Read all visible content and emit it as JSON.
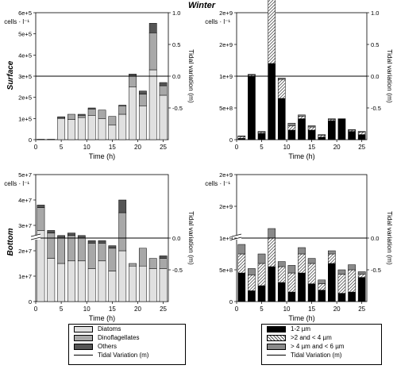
{
  "header": {
    "title": "Winter",
    "row_surface": "Surface",
    "row_bottom": "Bottom"
  },
  "axes": {
    "xlabel": "Time (h)",
    "ylabel_left": "cells · l⁻¹",
    "ylabel_right": "Tidal variation (m)"
  },
  "colors": {
    "diatoms": "#e0e0e0",
    "dinoflagellates": "#a8a8a8",
    "others": "#555555",
    "s1_2": "#000000",
    "s2_4": "#ffffff",
    "s4_6": "#8a8a8a"
  },
  "legend_left": {
    "items": [
      {
        "label": "Diatoms",
        "swatch": "diatoms"
      },
      {
        "label": "Dinoflagellates",
        "swatch": "dinoflagellates"
      },
      {
        "label": "Others",
        "swatch": "others"
      },
      {
        "label": "Tidal Variation (m)",
        "swatch": "line"
      }
    ]
  },
  "legend_right": {
    "items": [
      {
        "label": "1-2 µm",
        "swatch": "s1_2"
      },
      {
        "label": ">2 and < 4 µm",
        "swatch": "s2_4"
      },
      {
        "label": "> 4 µm and < 6 µm",
        "swatch": "s4_6"
      },
      {
        "label": "Tidal Variation (m)",
        "swatch": "line"
      }
    ]
  },
  "chart_data": [
    {
      "type": "bar",
      "stacked": true,
      "panel": "surface-phytoplankton",
      "x": [
        1,
        3,
        5,
        7,
        9,
        11,
        13,
        15,
        17,
        19,
        21,
        23,
        25
      ],
      "xlim": [
        0,
        26
      ],
      "xticks": [
        0,
        5,
        10,
        15,
        20,
        25
      ],
      "ylim": [
        0,
        600000
      ],
      "yticks": [
        {
          "v": 0,
          "t": "0"
        },
        {
          "v": 100000,
          "t": "1e+5"
        },
        {
          "v": 200000,
          "t": "2e+5"
        },
        {
          "v": 300000,
          "t": "3e+5"
        },
        {
          "v": 400000,
          "t": "4e+5"
        },
        {
          "v": 500000,
          "t": "5e+5"
        },
        {
          "v": 600000,
          "t": "6e+5"
        }
      ],
      "y2lim": [
        -1,
        1
      ],
      "y2ticks": [
        {
          "v": 1,
          "t": "1.0"
        },
        {
          "v": 0.5,
          "t": "0.5"
        },
        {
          "v": 0,
          "t": "0.0"
        },
        {
          "v": -0.5,
          "t": "-0.5"
        }
      ],
      "tide": [
        0,
        0,
        0,
        0,
        0,
        0,
        0,
        0,
        0,
        0,
        0,
        0,
        0
      ],
      "series": [
        {
          "name": "Diatoms",
          "color_key": "diatoms",
          "values": [
            2000,
            2000,
            100000,
            95000,
            105000,
            115000,
            100000,
            70000,
            120000,
            250000,
            160000,
            330000,
            210000
          ]
        },
        {
          "name": "Dinoflagellates",
          "color_key": "dinoflagellates",
          "values": [
            0,
            0,
            5000,
            25000,
            10000,
            30000,
            40000,
            40000,
            40000,
            50000,
            55000,
            175000,
            45000
          ]
        },
        {
          "name": "Others",
          "color_key": "others",
          "values": [
            0,
            0,
            3000,
            0,
            5000,
            5000,
            0,
            0,
            3000,
            10000,
            15000,
            45000,
            15000
          ]
        }
      ]
    },
    {
      "type": "bar",
      "stacked": true,
      "panel": "surface-picoplankton",
      "x": [
        1,
        3,
        5,
        7,
        9,
        11,
        13,
        15,
        17,
        19,
        21,
        23,
        25
      ],
      "xlim": [
        0,
        26
      ],
      "xticks": [
        0,
        5,
        10,
        15,
        20,
        25
      ],
      "ylim": [
        0,
        2000000000
      ],
      "yticks": [
        {
          "v": 0,
          "t": "0"
        },
        {
          "v": 500000000,
          "t": "5e+8"
        },
        {
          "v": 1000000000,
          "t": "1e+9"
        },
        {
          "v": 1500000000,
          "t": "2e+9"
        },
        {
          "v": 2000000000,
          "t": "2e+9"
        }
      ],
      "y2lim": [
        -1,
        1
      ],
      "y2ticks": [
        {
          "v": 1,
          "t": "1.0"
        },
        {
          "v": 0.5,
          "t": "0.5"
        },
        {
          "v": 0,
          "t": "0.0"
        },
        {
          "v": -0.5,
          "t": "-0.5"
        }
      ],
      "tide": [
        0,
        0,
        0,
        0,
        0,
        0,
        0,
        0,
        0,
        0,
        0,
        0,
        0
      ],
      "series": [
        {
          "name": "1-2 µm",
          "color_key": "s1_2",
          "values": [
            20000000,
            1000000000,
            100000000,
            1200000000,
            650000000,
            150000000,
            330000000,
            150000000,
            40000000,
            300000000,
            330000000,
            130000000,
            80000000
          ]
        },
        {
          "name": ">2 and < 4 µm",
          "color_key": "s2_4",
          "values": [
            30000000,
            20000000,
            20000000,
            1450000000,
            300000000,
            70000000,
            40000000,
            50000000,
            30000000,
            20000000,
            0,
            20000000,
            40000000
          ]
        },
        {
          "name": "> 4 µm and < 6 µm",
          "color_key": "s4_6",
          "values": [
            10000000,
            10000000,
            10000000,
            130000000,
            20000000,
            40000000,
            20000000,
            20000000,
            10000000,
            10000000,
            0,
            10000000,
            10000000
          ]
        }
      ]
    },
    {
      "type": "bar",
      "stacked": true,
      "panel": "bottom-phytoplankton",
      "broken_axis": true,
      "x": [
        1,
        3,
        5,
        7,
        9,
        11,
        13,
        15,
        17,
        19,
        21,
        23,
        25
      ],
      "xlim": [
        0,
        26
      ],
      "xticks": [
        0,
        5,
        10,
        15,
        20,
        25
      ],
      "ylim": [
        0,
        50000000
      ],
      "yticks": [
        {
          "v": 0,
          "t": "0"
        },
        {
          "v": 10000000,
          "t": "1e+7"
        },
        {
          "v": 20000000,
          "t": "2e+7"
        },
        {
          "v": 30000000,
          "t": "3e+7"
        },
        {
          "v": 40000000,
          "t": "4e+7"
        },
        {
          "v": 50000000,
          "t": "5e+7"
        }
      ],
      "y2lim": [
        -1,
        1
      ],
      "y2ticks": [
        {
          "v": 0,
          "t": "0.0"
        },
        {
          "v": -0.5,
          "t": "-0.5"
        }
      ],
      "tide": [
        0,
        0,
        0,
        0,
        0,
        0,
        0,
        0,
        0,
        0,
        0,
        0,
        0
      ],
      "series": [
        {
          "name": "Diatoms",
          "color_key": "diatoms",
          "values": [
            28000000,
            17000000,
            15000000,
            16000000,
            16000000,
            13000000,
            16000000,
            12000000,
            20000000,
            14000000,
            14000000,
            13000000,
            13000000
          ]
        },
        {
          "name": "Dinoflagellates",
          "color_key": "dinoflagellates",
          "values": [
            9000000,
            10000000,
            10000000,
            10000000,
            9000000,
            10000000,
            7000000,
            9000000,
            15000000,
            1000000,
            7000000,
            4000000,
            4000000
          ]
        },
        {
          "name": "Others",
          "color_key": "others",
          "values": [
            1000000,
            1000000,
            1000000,
            1000000,
            1000000,
            1000000,
            1000000,
            1000000,
            5000000,
            0,
            0,
            0,
            1000000
          ]
        }
      ]
    },
    {
      "type": "bar",
      "stacked": true,
      "panel": "bottom-picoplankton",
      "broken_axis": true,
      "x": [
        1,
        3,
        5,
        7,
        9,
        11,
        13,
        15,
        17,
        19,
        21,
        23,
        25
      ],
      "xlim": [
        0,
        26
      ],
      "xticks": [
        0,
        5,
        10,
        15,
        20,
        25
      ],
      "ylim": [
        0,
        2000000000
      ],
      "yticks": [
        {
          "v": 0,
          "t": "0"
        },
        {
          "v": 500000000,
          "t": "5e+8"
        },
        {
          "v": 1000000000,
          "t": "1e+9"
        },
        {
          "v": 1500000000,
          "t": "2e+9"
        },
        {
          "v": 2000000000,
          "t": "2e+9"
        }
      ],
      "y2lim": [
        -1,
        1
      ],
      "y2ticks": [
        {
          "v": 0,
          "t": "0.0"
        },
        {
          "v": -0.5,
          "t": "-0.5"
        }
      ],
      "tide": [
        0,
        0,
        0,
        0,
        0,
        0,
        0,
        0,
        0,
        0,
        0,
        0,
        0
      ],
      "series": [
        {
          "name": "1-2 µm",
          "color_key": "s1_2",
          "values": [
            450000000,
            170000000,
            250000000,
            550000000,
            300000000,
            150000000,
            450000000,
            280000000,
            180000000,
            600000000,
            130000000,
            150000000,
            380000000
          ]
        },
        {
          "name": ">2 and < 4 µm",
          "color_key": "s2_4",
          "values": [
            300000000,
            250000000,
            350000000,
            450000000,
            250000000,
            300000000,
            300000000,
            320000000,
            100000000,
            150000000,
            300000000,
            350000000,
            50000000
          ]
        },
        {
          "name": "> 4 µm and < 6 µm",
          "color_key": "s4_6",
          "values": [
            150000000,
            100000000,
            150000000,
            150000000,
            80000000,
            120000000,
            100000000,
            80000000,
            60000000,
            50000000,
            70000000,
            80000000,
            40000000
          ]
        }
      ]
    }
  ]
}
